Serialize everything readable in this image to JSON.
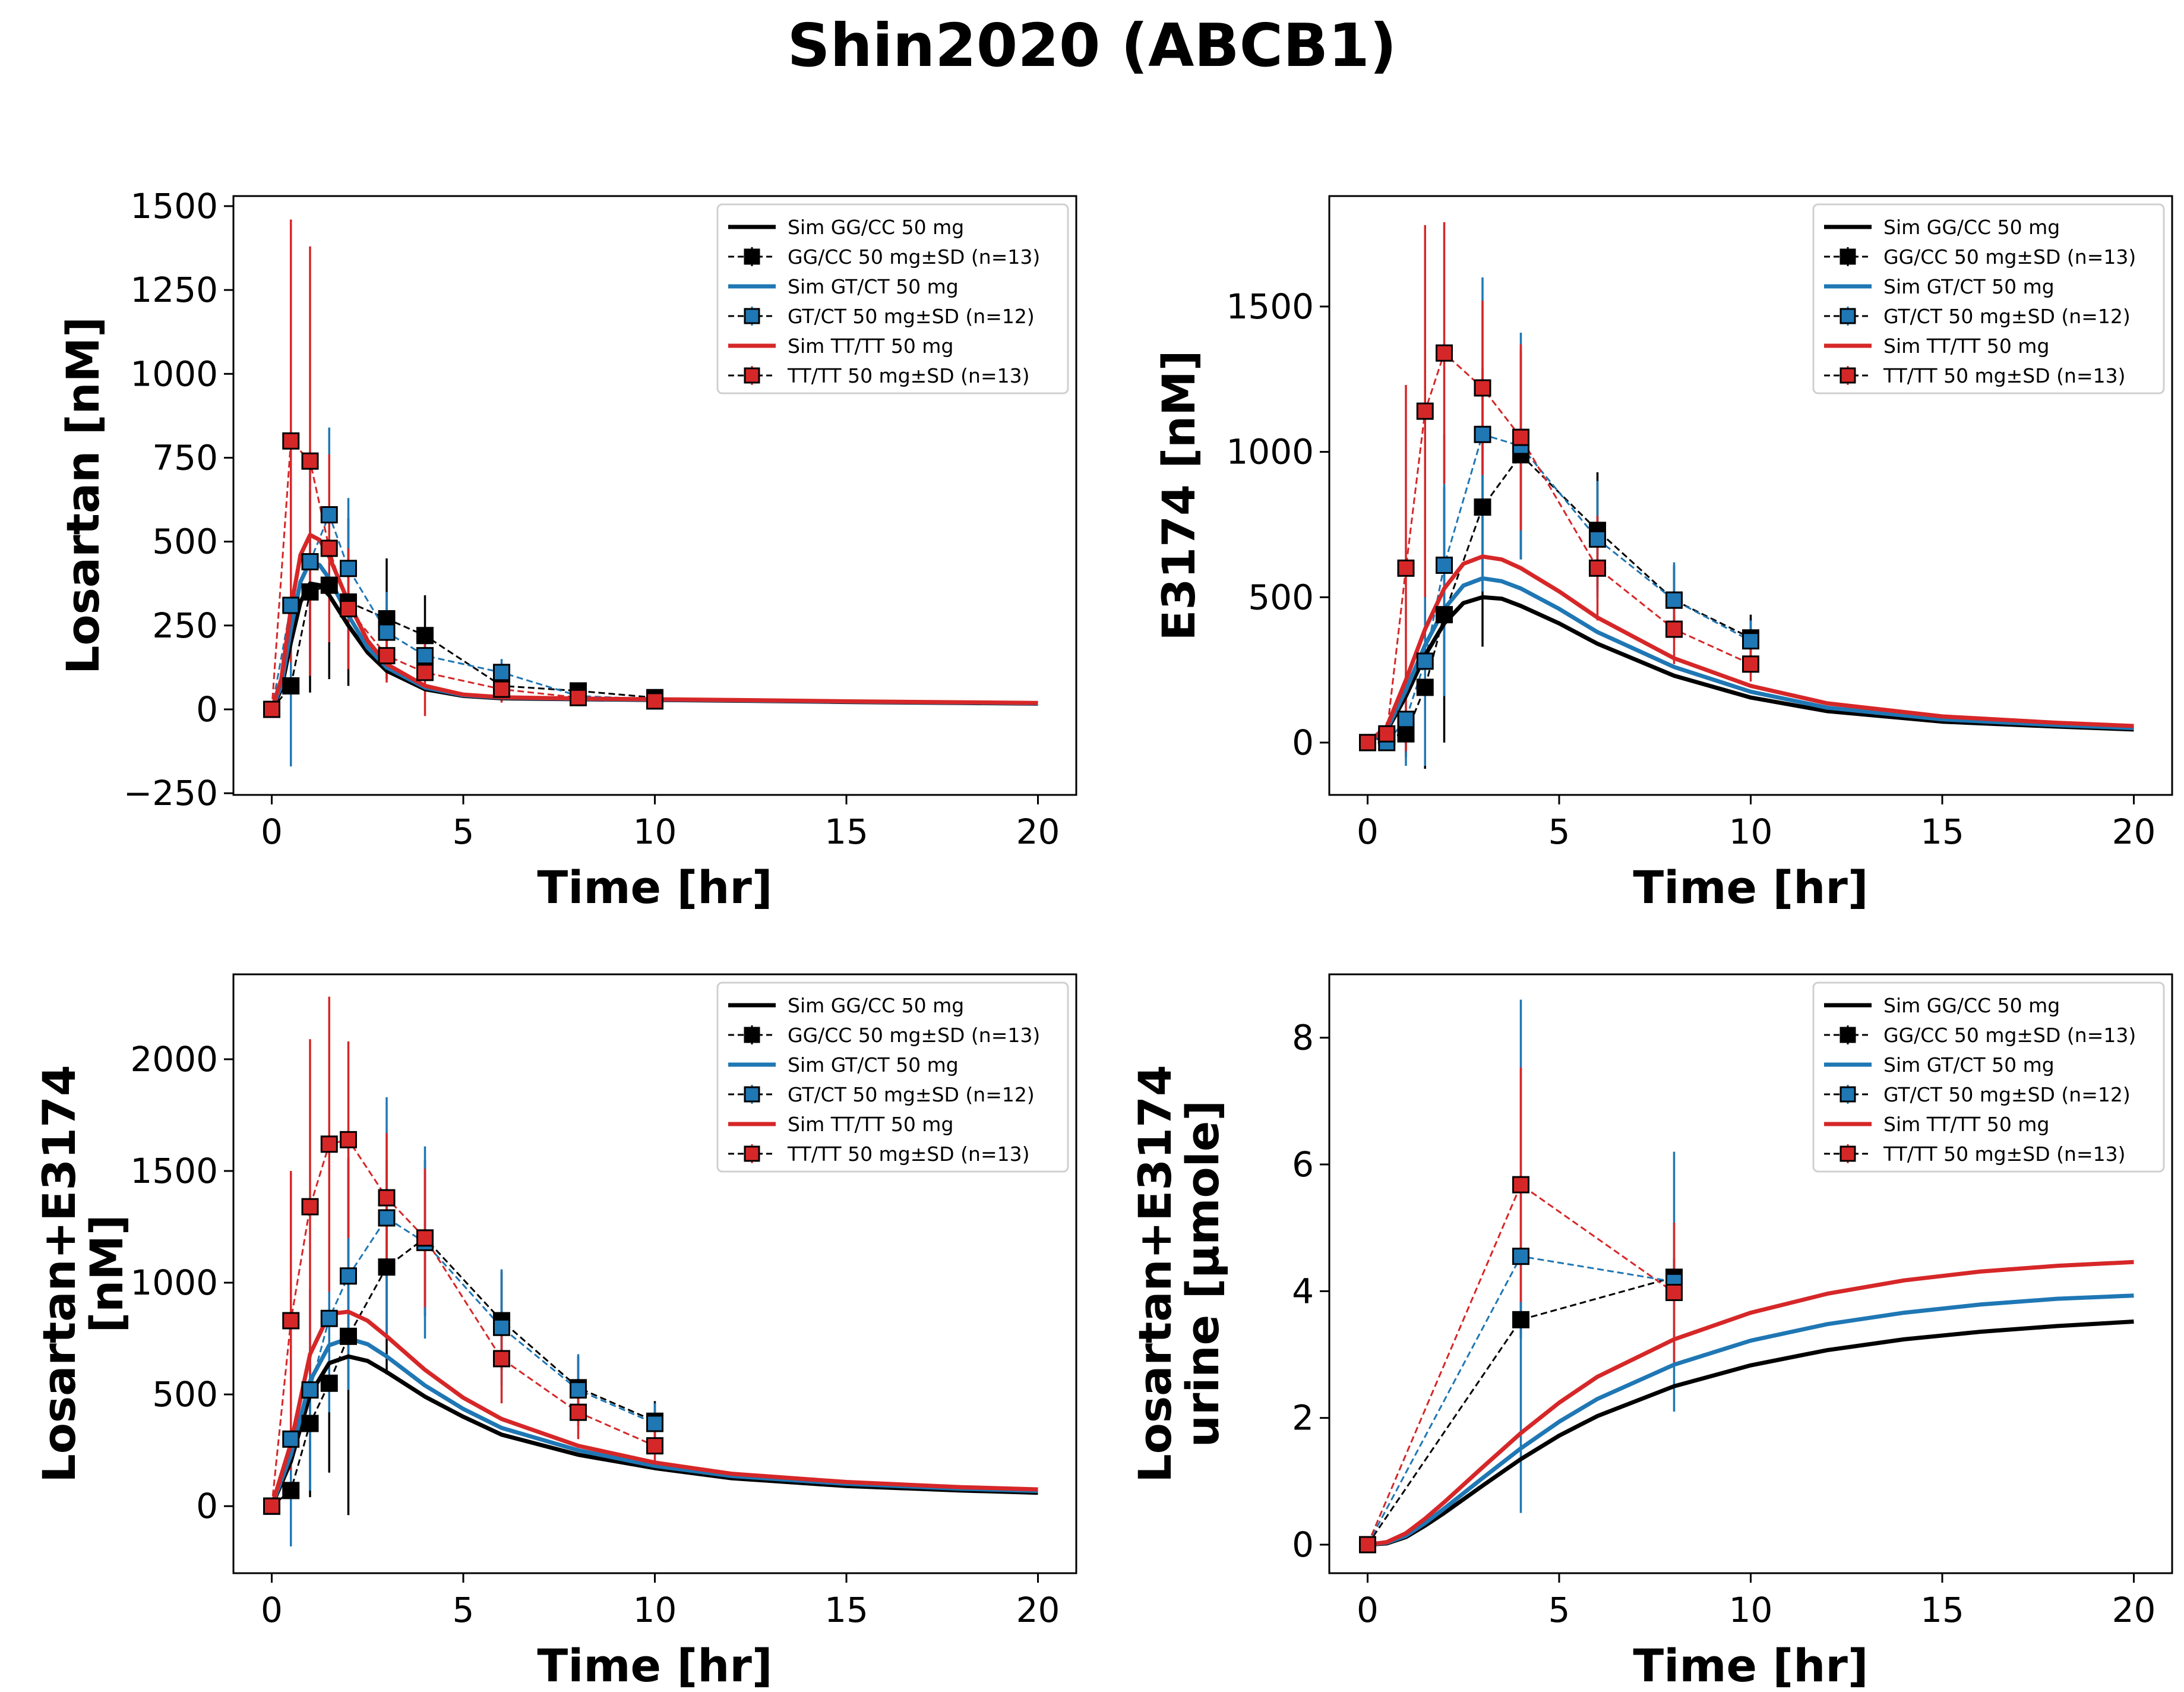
{
  "figure_title": "Shin2020 (ABCB1)",
  "colors": {
    "GG/CC": "#000000",
    "GT/CT": "#1f77b4",
    "TT/TT": "#d62728"
  },
  "legend_entries": [
    {
      "label": "Sim GG/CC 50 mg",
      "kind": "sim",
      "group": "GG/CC"
    },
    {
      "label": "GG/CC 50 mg±SD (n=13)",
      "kind": "data",
      "group": "GG/CC"
    },
    {
      "label": "Sim GT/CT 50 mg",
      "kind": "sim",
      "group": "GT/CT"
    },
    {
      "label": "GT/CT 50 mg±SD (n=12)",
      "kind": "data",
      "group": "GT/CT"
    },
    {
      "label": "Sim TT/TT 50 mg",
      "kind": "sim",
      "group": "TT/TT"
    },
    {
      "label": "TT/TT 50 mg±SD (n=13)",
      "kind": "data",
      "group": "TT/TT"
    }
  ],
  "chart_data": [
    {
      "type": "line",
      "xlabel": "Time [hr]",
      "ylabel": [
        "Losartan [nM]"
      ],
      "xlim": [
        -1,
        21
      ],
      "ylim": [
        -255,
        1530
      ],
      "xticks": [
        0,
        5,
        10,
        15,
        20
      ],
      "yticks": [
        -250,
        0,
        250,
        500,
        750,
        1000,
        1250,
        1500
      ],
      "ytick_labels": [
        "−250",
        "0",
        "250",
        "500",
        "750",
        "1000",
        "1250",
        "1500"
      ],
      "legend_position": "top-right",
      "sim": [
        {
          "group": "GG/CC",
          "t": [
            0,
            0.25,
            0.5,
            0.75,
            1,
            1.25,
            1.5,
            2,
            2.5,
            3,
            4,
            5,
            6,
            8,
            10,
            12,
            15,
            18,
            20
          ],
          "y": [
            0,
            60,
            200,
            320,
            375,
            370,
            340,
            250,
            170,
            115,
            60,
            40,
            33,
            30,
            28,
            26,
            22,
            19,
            17
          ]
        },
        {
          "group": "GT/CT",
          "t": [
            0,
            0.25,
            0.5,
            0.75,
            1,
            1.25,
            1.5,
            2,
            2.5,
            3,
            4,
            5,
            6,
            8,
            10,
            12,
            15,
            18,
            20
          ],
          "y": [
            0,
            70,
            240,
            380,
            440,
            430,
            390,
            280,
            185,
            125,
            65,
            42,
            35,
            31,
            29,
            27,
            23,
            20,
            18
          ]
        },
        {
          "group": "TT/TT",
          "t": [
            0,
            0.25,
            0.5,
            0.75,
            1,
            1.25,
            1.5,
            2,
            2.5,
            3,
            4,
            5,
            6,
            8,
            10,
            12,
            15,
            18,
            20
          ],
          "y": [
            0,
            90,
            300,
            460,
            520,
            505,
            455,
            320,
            205,
            135,
            70,
            44,
            36,
            32,
            30,
            28,
            24,
            21,
            19
          ]
        }
      ],
      "obs": [
        {
          "group": "GG/CC",
          "t": [
            0,
            0.5,
            1,
            1.5,
            2,
            3,
            4,
            6,
            8,
            10
          ],
          "y": [
            0,
            70,
            350,
            370,
            320,
            270,
            220,
            70,
            55,
            35
          ],
          "sd": [
            0,
            0,
            300,
            280,
            250,
            180,
            120,
            40,
            20,
            15
          ]
        },
        {
          "group": "GT/CT",
          "t": [
            0,
            0.5,
            1,
            1.5,
            2,
            3,
            4,
            6,
            8,
            10
          ],
          "y": [
            0,
            310,
            440,
            580,
            420,
            230,
            160,
            110,
            40,
            30
          ],
          "sd": [
            0,
            480,
            300,
            260,
            210,
            120,
            80,
            40,
            15,
            10
          ]
        },
        {
          "group": "TT/TT",
          "t": [
            0,
            0.5,
            1,
            1.5,
            2,
            3,
            4,
            6,
            8,
            10
          ],
          "y": [
            0,
            800,
            740,
            480,
            300,
            160,
            110,
            60,
            35,
            25
          ],
          "sd": [
            0,
            660,
            640,
            280,
            180,
            80,
            130,
            40,
            15,
            10
          ]
        }
      ]
    },
    {
      "type": "line",
      "xlabel": "Time [hr]",
      "ylabel": [
        "E3174 [nM]"
      ],
      "xlim": [
        -1,
        21
      ],
      "ylim": [
        -180,
        1880
      ],
      "xticks": [
        0,
        5,
        10,
        15,
        20
      ],
      "yticks": [
        0,
        500,
        1000,
        1500
      ],
      "ytick_labels": [
        "0",
        "500",
        "1000",
        "1500"
      ],
      "legend_position": "top-right",
      "sim": [
        {
          "group": "GG/CC",
          "t": [
            0,
            0.5,
            1,
            1.5,
            2,
            2.5,
            3,
            3.5,
            4,
            5,
            6,
            8,
            10,
            12,
            15,
            18,
            20
          ],
          "y": [
            0,
            40,
            160,
            300,
            410,
            480,
            500,
            495,
            470,
            410,
            340,
            230,
            155,
            108,
            72,
            55,
            45
          ]
        },
        {
          "group": "GT/CT",
          "t": [
            0,
            0.5,
            1,
            1.5,
            2,
            2.5,
            3,
            3.5,
            4,
            5,
            6,
            8,
            10,
            12,
            15,
            18,
            20
          ],
          "y": [
            0,
            45,
            180,
            335,
            460,
            540,
            565,
            555,
            530,
            460,
            380,
            260,
            175,
            120,
            80,
            60,
            50
          ]
        },
        {
          "group": "TT/TT",
          "t": [
            0,
            0.5,
            1,
            1.5,
            2,
            2.5,
            3,
            3.5,
            4,
            5,
            6,
            8,
            10,
            12,
            15,
            18,
            20
          ],
          "y": [
            0,
            55,
            215,
            390,
            530,
            615,
            640,
            630,
            600,
            520,
            430,
            290,
            195,
            135,
            90,
            68,
            57
          ]
        }
      ],
      "obs": [
        {
          "group": "GG/CC",
          "t": [
            0,
            0.5,
            1,
            1.5,
            2,
            3,
            4,
            6,
            8,
            10
          ],
          "y": [
            0,
            20,
            30,
            190,
            440,
            810,
            990,
            730,
            490,
            360
          ],
          "sd": [
            0,
            30,
            80,
            280,
            440,
            480,
            360,
            200,
            120,
            80
          ]
        },
        {
          "group": "GT/CT",
          "t": [
            0,
            0.5,
            1,
            1.5,
            2,
            3,
            4,
            6,
            8,
            10
          ],
          "y": [
            0,
            0,
            80,
            280,
            610,
            1060,
            1020,
            700,
            490,
            350
          ],
          "sd": [
            0,
            20,
            160,
            360,
            450,
            540,
            390,
            200,
            130,
            70
          ]
        },
        {
          "group": "TT/TT",
          "t": [
            0,
            0.5,
            1,
            1.5,
            2,
            3,
            4,
            6,
            8,
            10
          ],
          "y": [
            0,
            30,
            600,
            1140,
            1340,
            1220,
            1050,
            600,
            390,
            270
          ],
          "sd": [
            0,
            40,
            630,
            640,
            450,
            300,
            320,
            180,
            120,
            60
          ]
        }
      ]
    },
    {
      "type": "line",
      "xlabel": "Time [hr]",
      "ylabel": [
        "Losartan+E3174",
        "[nM]"
      ],
      "xlim": [
        -1,
        21
      ],
      "ylim": [
        -300,
        2380
      ],
      "xticks": [
        0,
        5,
        10,
        15,
        20
      ],
      "yticks": [
        0,
        500,
        1000,
        1500,
        2000
      ],
      "ytick_labels": [
        "0",
        "500",
        "1000",
        "1500",
        "2000"
      ],
      "legend_position": "top-right",
      "sim": [
        {
          "group": "GG/CC",
          "t": [
            0,
            0.5,
            1,
            1.5,
            2,
            2.5,
            3,
            4,
            5,
            6,
            8,
            10,
            12,
            15,
            18,
            20
          ],
          "y": [
            0,
            200,
            500,
            640,
            670,
            650,
            600,
            490,
            400,
            320,
            230,
            170,
            125,
            90,
            70,
            60
          ]
        },
        {
          "group": "GT/CT",
          "t": [
            0,
            0.5,
            1,
            1.5,
            2,
            2.5,
            3,
            4,
            5,
            6,
            8,
            10,
            12,
            15,
            18,
            20
          ],
          "y": [
            0,
            230,
            560,
            720,
            750,
            725,
            670,
            540,
            435,
            350,
            250,
            180,
            135,
            100,
            78,
            68
          ]
        },
        {
          "group": "TT/TT",
          "t": [
            0,
            0.5,
            1,
            1.5,
            2,
            2.5,
            3,
            4,
            5,
            6,
            8,
            10,
            12,
            15,
            18,
            20
          ],
          "y": [
            0,
            280,
            680,
            860,
            870,
            830,
            760,
            610,
            485,
            390,
            270,
            195,
            145,
            108,
            85,
            75
          ]
        }
      ],
      "obs": [
        {
          "group": "GG/CC",
          "t": [
            0,
            0.5,
            1,
            1.5,
            2,
            3,
            4,
            6,
            8,
            10
          ],
          "y": [
            0,
            70,
            370,
            550,
            760,
            1070,
            1200,
            830,
            530,
            380
          ],
          "sd": [
            0,
            30,
            330,
            400,
            800,
            480,
            350,
            220,
            140,
            90
          ]
        },
        {
          "group": "GT/CT",
          "t": [
            0,
            0.5,
            1,
            1.5,
            2,
            3,
            4,
            6,
            8,
            10
          ],
          "y": [
            0,
            300,
            520,
            840,
            1030,
            1290,
            1180,
            800,
            520,
            370
          ],
          "sd": [
            0,
            480,
            450,
            420,
            510,
            540,
            430,
            260,
            160,
            90
          ]
        },
        {
          "group": "TT/TT",
          "t": [
            0,
            0.5,
            1,
            1.5,
            2,
            3,
            4,
            6,
            8,
            10
          ],
          "y": [
            0,
            830,
            1340,
            1620,
            1640,
            1380,
            1200,
            660,
            420,
            270
          ],
          "sd": [
            0,
            670,
            750,
            660,
            440,
            290,
            310,
            200,
            120,
            70
          ]
        }
      ]
    },
    {
      "type": "line",
      "xlabel": "Time [hr]",
      "ylabel": [
        "Losartan+E3174",
        "urine [µmole]"
      ],
      "xlim": [
        -1,
        21
      ],
      "ylim": [
        -0.45,
        9.0
      ],
      "xticks": [
        0,
        5,
        10,
        15,
        20
      ],
      "yticks": [
        0,
        2,
        4,
        6,
        8
      ],
      "ytick_labels": [
        "0",
        "2",
        "4",
        "6",
        "8"
      ],
      "legend_position": "top-right",
      "sim": [
        {
          "group": "GG/CC",
          "t": [
            0,
            0.5,
            1,
            1.5,
            2,
            3,
            4,
            5,
            6,
            8,
            10,
            12,
            14,
            16,
            18,
            20
          ],
          "y": [
            0,
            0.02,
            0.12,
            0.3,
            0.5,
            0.93,
            1.35,
            1.72,
            2.03,
            2.5,
            2.83,
            3.07,
            3.24,
            3.36,
            3.45,
            3.52
          ]
        },
        {
          "group": "GT/CT",
          "t": [
            0,
            0.5,
            1,
            1.5,
            2,
            3,
            4,
            5,
            6,
            8,
            10,
            12,
            14,
            16,
            18,
            20
          ],
          "y": [
            0,
            0.03,
            0.14,
            0.34,
            0.57,
            1.05,
            1.52,
            1.94,
            2.3,
            2.84,
            3.22,
            3.48,
            3.66,
            3.79,
            3.88,
            3.93
          ]
        },
        {
          "group": "TT/TT",
          "t": [
            0,
            0.5,
            1,
            1.5,
            2,
            3,
            4,
            5,
            6,
            8,
            10,
            12,
            14,
            16,
            18,
            20
          ],
          "y": [
            0,
            0.04,
            0.18,
            0.41,
            0.67,
            1.22,
            1.76,
            2.24,
            2.65,
            3.24,
            3.66,
            3.96,
            4.17,
            4.31,
            4.4,
            4.46
          ]
        }
      ],
      "obs": [
        {
          "group": "GG/CC",
          "t": [
            0,
            4,
            8
          ],
          "y": [
            0,
            3.55,
            4.22
          ],
          "sd": [
            0,
            0.3,
            0.3
          ]
        },
        {
          "group": "GT/CT",
          "t": [
            0,
            4,
            8
          ],
          "y": [
            0,
            4.55,
            4.15
          ],
          "sd": [
            0,
            4.05,
            2.05
          ]
        },
        {
          "group": "TT/TT",
          "t": [
            0,
            4,
            8
          ],
          "y": [
            0,
            5.68,
            3.98
          ],
          "sd": [
            0,
            1.85,
            1.1
          ]
        }
      ]
    }
  ]
}
